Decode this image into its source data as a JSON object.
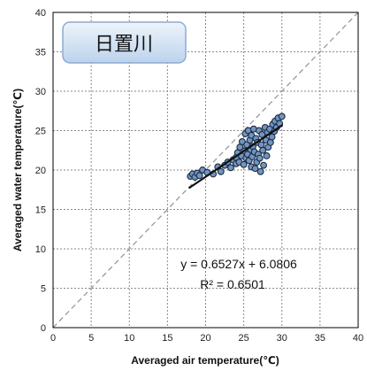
{
  "chart_data": {
    "type": "scatter",
    "title": "日置川",
    "xlabel": "Averaged air temperature(℃)",
    "ylabel": "Averaged water temperature(℃)",
    "xlim": [
      0,
      40
    ],
    "ylim": [
      0,
      40
    ],
    "x_ticks": [
      "0",
      "5",
      "10",
      "15",
      "20",
      "25",
      "30",
      "35",
      "40"
    ],
    "y_ticks": [
      "0",
      "5",
      "10",
      "15",
      "20",
      "25",
      "30",
      "35",
      "40"
    ],
    "grid": true,
    "reference_line": {
      "style": "dashed",
      "slope": 1,
      "intercept": 0
    },
    "trendline": {
      "slope": 0.6527,
      "intercept": 6.0806,
      "x_range": [
        17.8,
        30.1
      ],
      "equation": "y = 0.6527x + 6.0806",
      "r_squared": "R² = 0.6501"
    },
    "colors": {
      "marker_fill": "#6f95c4",
      "marker_edge": "#1f2c3e",
      "trendline": "#111111",
      "reference_line": "#9a9a9a",
      "grid": "#8a8a8a",
      "label_box_top": "#eef4fb",
      "label_box_bottom": "#bcd3ec",
      "label_box_border": "#8eaad0"
    },
    "points": [
      {
        "x": 18.0,
        "y": 19.2
      },
      {
        "x": 18.3,
        "y": 19.5
      },
      {
        "x": 18.6,
        "y": 19.1
      },
      {
        "x": 18.9,
        "y": 19.6
      },
      {
        "x": 19.2,
        "y": 19.3
      },
      {
        "x": 19.6,
        "y": 20.0
      },
      {
        "x": 20.2,
        "y": 19.7
      },
      {
        "x": 21.0,
        "y": 19.5
      },
      {
        "x": 21.6,
        "y": 20.4
      },
      {
        "x": 22.0,
        "y": 19.8
      },
      {
        "x": 22.5,
        "y": 20.6
      },
      {
        "x": 22.9,
        "y": 21.0
      },
      {
        "x": 23.3,
        "y": 20.3
      },
      {
        "x": 23.6,
        "y": 21.3
      },
      {
        "x": 24.0,
        "y": 20.8
      },
      {
        "x": 24.0,
        "y": 21.6
      },
      {
        "x": 24.2,
        "y": 22.2
      },
      {
        "x": 24.4,
        "y": 21.0
      },
      {
        "x": 24.5,
        "y": 22.9
      },
      {
        "x": 24.7,
        "y": 21.8
      },
      {
        "x": 24.8,
        "y": 23.6
      },
      {
        "x": 25.0,
        "y": 20.7
      },
      {
        "x": 25.1,
        "y": 22.4
      },
      {
        "x": 25.2,
        "y": 24.6
      },
      {
        "x": 25.3,
        "y": 21.5
      },
      {
        "x": 25.4,
        "y": 23.2
      },
      {
        "x": 25.5,
        "y": 22.0
      },
      {
        "x": 25.6,
        "y": 25.0
      },
      {
        "x": 25.7,
        "y": 21.2
      },
      {
        "x": 25.8,
        "y": 23.8
      },
      {
        "x": 25.9,
        "y": 22.6
      },
      {
        "x": 26.0,
        "y": 20.4
      },
      {
        "x": 26.0,
        "y": 24.4
      },
      {
        "x": 26.1,
        "y": 21.7
      },
      {
        "x": 26.2,
        "y": 23.0
      },
      {
        "x": 26.3,
        "y": 25.2
      },
      {
        "x": 26.4,
        "y": 22.3
      },
      {
        "x": 26.5,
        "y": 20.2
      },
      {
        "x": 26.6,
        "y": 24.0
      },
      {
        "x": 26.7,
        "y": 21.0
      },
      {
        "x": 26.8,
        "y": 23.5
      },
      {
        "x": 26.9,
        "y": 22.0
      },
      {
        "x": 27.0,
        "y": 25.0
      },
      {
        "x": 27.1,
        "y": 21.5
      },
      {
        "x": 27.2,
        "y": 19.8
      },
      {
        "x": 27.3,
        "y": 23.2
      },
      {
        "x": 27.4,
        "y": 24.5
      },
      {
        "x": 27.5,
        "y": 22.5
      },
      {
        "x": 27.6,
        "y": 20.6
      },
      {
        "x": 27.8,
        "y": 25.4
      },
      {
        "x": 27.9,
        "y": 23.8
      },
      {
        "x": 28.0,
        "y": 21.8
      },
      {
        "x": 28.1,
        "y": 24.8
      },
      {
        "x": 28.2,
        "y": 22.9
      },
      {
        "x": 28.4,
        "y": 25.2
      },
      {
        "x": 28.5,
        "y": 23.5
      },
      {
        "x": 28.7,
        "y": 24.2
      },
      {
        "x": 28.8,
        "y": 25.8
      },
      {
        "x": 29.0,
        "y": 24.9
      },
      {
        "x": 29.1,
        "y": 26.2
      },
      {
        "x": 29.3,
        "y": 25.4
      },
      {
        "x": 29.5,
        "y": 26.6
      },
      {
        "x": 29.7,
        "y": 25.9
      },
      {
        "x": 30.0,
        "y": 26.8
      }
    ]
  }
}
